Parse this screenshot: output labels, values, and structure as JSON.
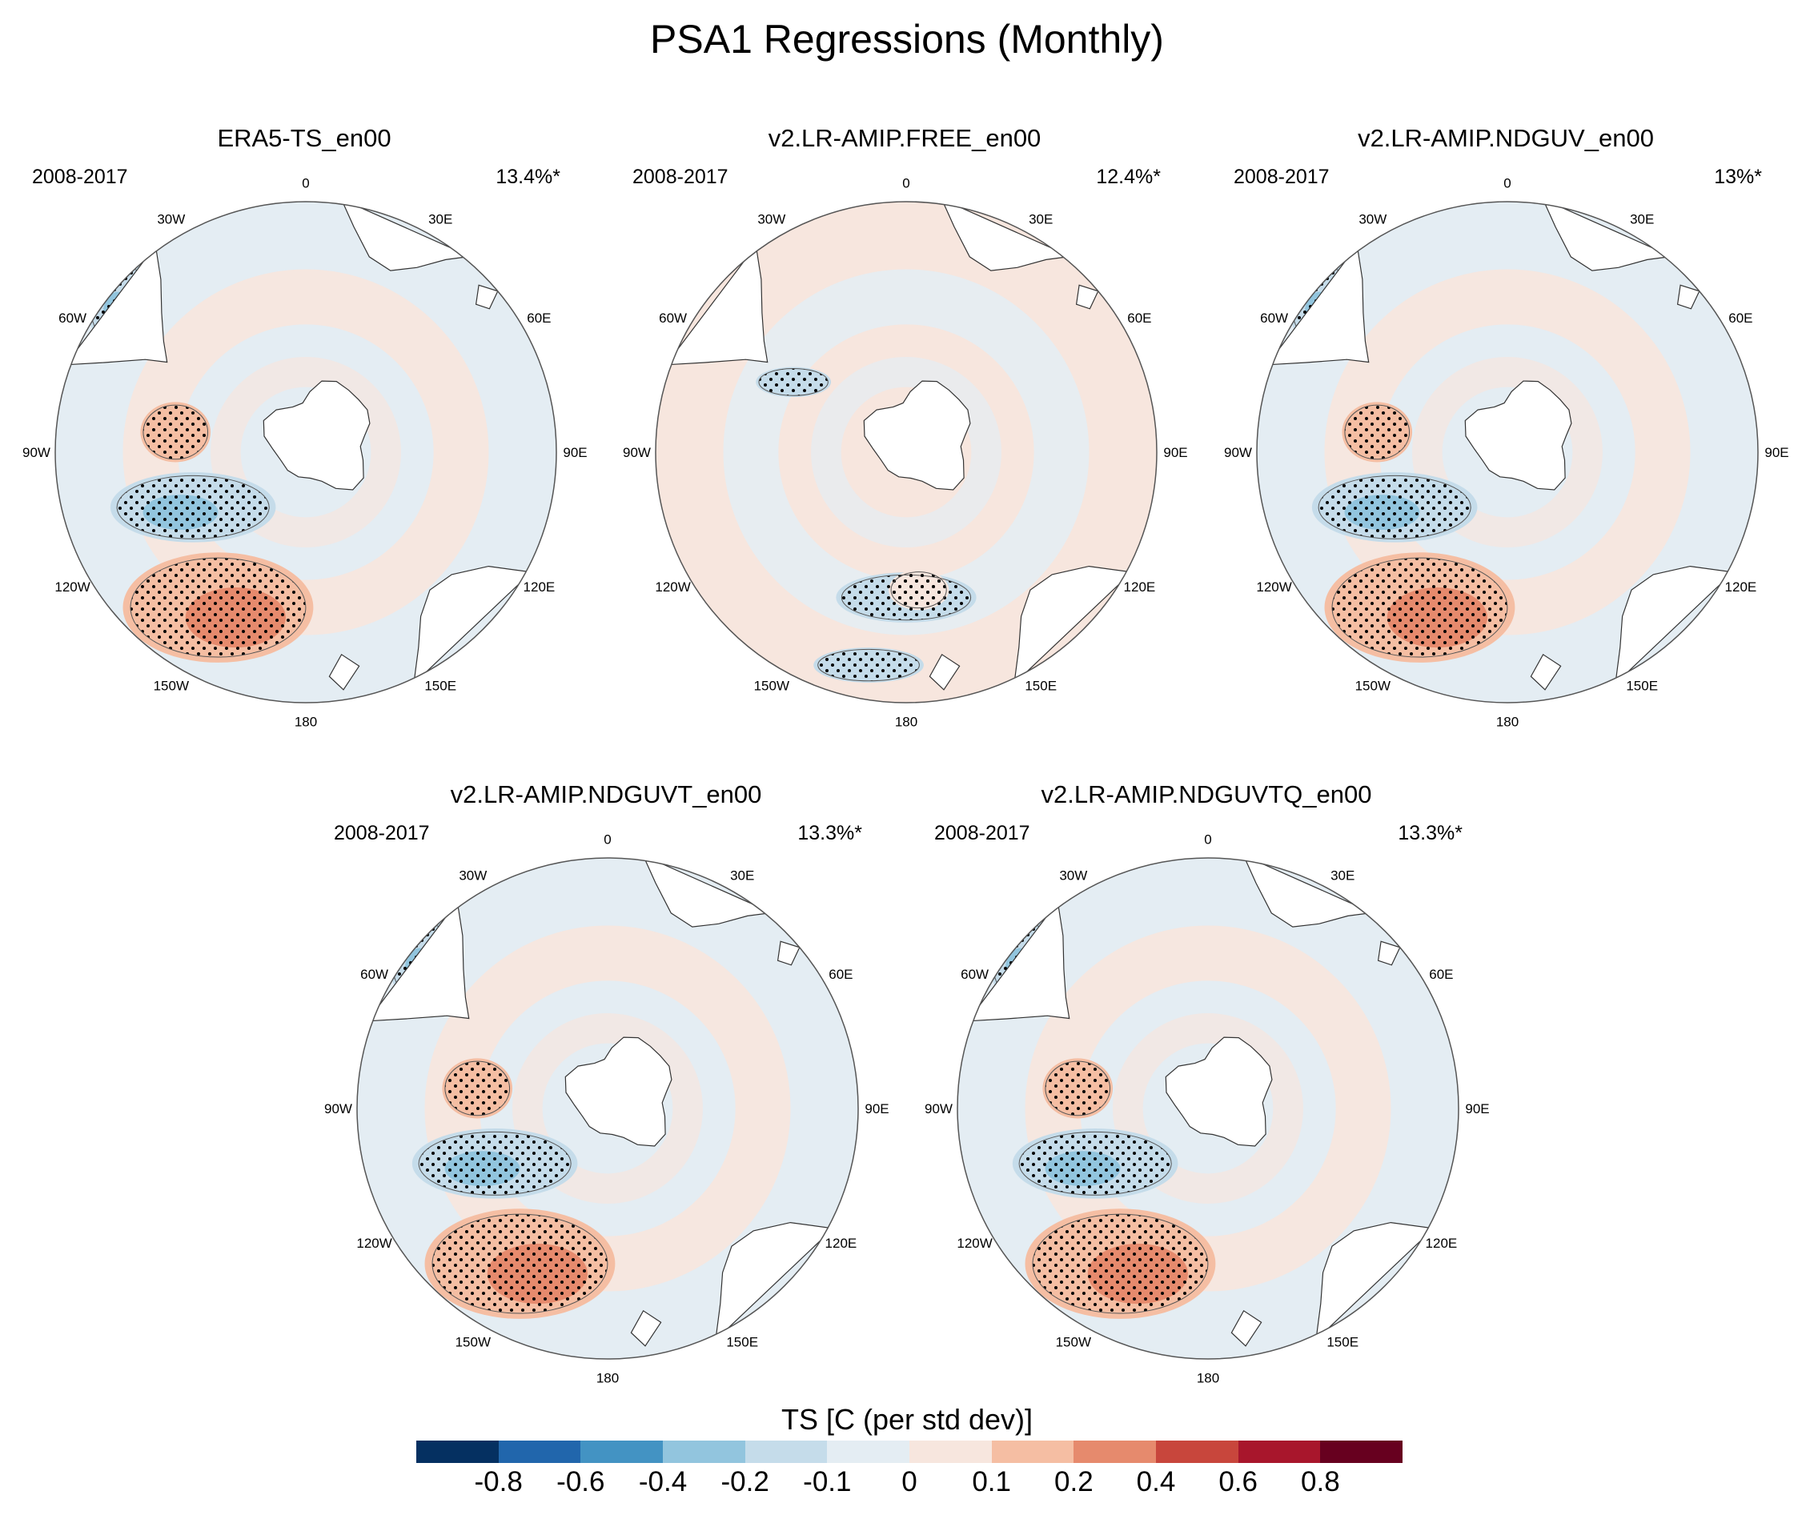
{
  "title": "PSA1 Regressions (Monthly)",
  "legend": {
    "title": "TS [C (per std dev)]",
    "colors": [
      "#053061",
      "#2166ac",
      "#4393c3",
      "#92c5de",
      "#c5dcea",
      "#e4edf3",
      "#f7e6de",
      "#f5bea3",
      "#e68a6d",
      "#c8463c",
      "#a8162c",
      "#67001f"
    ],
    "tick_labels": [
      "-0.8",
      "-0.6",
      "-0.4",
      "-0.2",
      "-0.1",
      "0",
      "0.1",
      "0.2",
      "0.4",
      "0.6",
      "0.8"
    ]
  },
  "longitude_labels": [
    "0",
    "30E",
    "60E",
    "90E",
    "120E",
    "150E",
    "180",
    "150W",
    "120W",
    "90W",
    "60W",
    "30W"
  ],
  "panels": [
    {
      "title": "ERA5-TS_en00",
      "period": "2008-2017",
      "variance": "13.4%*"
    },
    {
      "title": "v2.LR-AMIP.FREE_en00",
      "period": "2008-2017",
      "variance": "12.4%*"
    },
    {
      "title": "v2.LR-AMIP.NDGUV_en00",
      "period": "2008-2017",
      "variance": "13%*"
    },
    {
      "title": "v2.LR-AMIP.NDGUVT_en00",
      "period": "2008-2017",
      "variance": "13.3%*"
    },
    {
      "title": "v2.LR-AMIP.NDGUVTQ_en00",
      "period": "2008-2017",
      "variance": "13.3%*"
    }
  ]
}
